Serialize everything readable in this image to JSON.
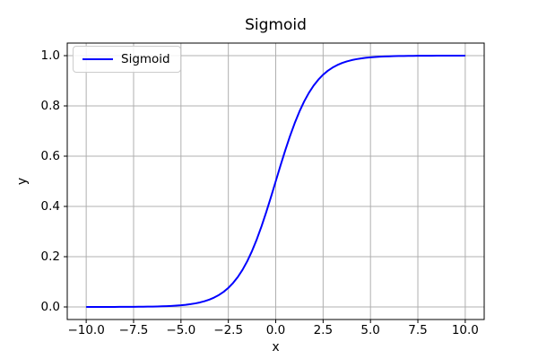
{
  "figure": {
    "background": "#ffffff"
  },
  "chart_data": {
    "type": "line",
    "title": "Sigmoid",
    "xlabel": "x",
    "ylabel": "y",
    "xlim": [
      -11,
      11
    ],
    "ylim": [
      -0.05,
      1.05
    ],
    "grid": true,
    "grid_color": "#b0b0b0",
    "spine_color": "#000000",
    "xticks": {
      "values": [
        -10,
        -7.5,
        -5,
        -2.5,
        0,
        2.5,
        5,
        7.5,
        10
      ],
      "labels": [
        "−10.0",
        "−7.5",
        "−5.0",
        "−2.5",
        "0.0",
        "2.5",
        "5.0",
        "7.5",
        "10.0"
      ]
    },
    "yticks": {
      "values": [
        0,
        0.2,
        0.4,
        0.6,
        0.8,
        1.0
      ],
      "labels": [
        "0.0",
        "0.2",
        "0.4",
        "0.6",
        "0.8",
        "1.0"
      ]
    },
    "legend": {
      "label": "Sigmoid",
      "position": "upper left"
    },
    "series": [
      {
        "name": "Sigmoid",
        "color": "#0000ff",
        "x": [
          -10,
          -9.75,
          -9.5,
          -9.25,
          -9,
          -8.75,
          -8.5,
          -8.25,
          -8,
          -7.75,
          -7.5,
          -7.25,
          -7,
          -6.75,
          -6.5,
          -6.25,
          -6,
          -5.75,
          -5.5,
          -5.25,
          -5,
          -4.75,
          -4.5,
          -4.25,
          -4,
          -3.75,
          -3.5,
          -3.25,
          -3,
          -2.75,
          -2.5,
          -2.25,
          -2,
          -1.75,
          -1.5,
          -1.25,
          -1,
          -0.75,
          -0.5,
          -0.25,
          0,
          0.25,
          0.5,
          0.75,
          1,
          1.25,
          1.5,
          1.75,
          2,
          2.25,
          2.5,
          2.75,
          3,
          3.25,
          3.5,
          3.75,
          4,
          4.25,
          4.5,
          4.75,
          5,
          5.25,
          5.5,
          5.75,
          6,
          6.25,
          6.5,
          6.75,
          7,
          7.25,
          7.5,
          7.75,
          8,
          8.25,
          8.5,
          8.75,
          9,
          9.25,
          9.5,
          9.75,
          10
        ],
        "y": [
          5e-05,
          6e-05,
          7e-05,
          0.0001,
          0.00012,
          0.00016,
          0.0002,
          0.00026,
          0.00034,
          0.00043,
          0.00055,
          0.00071,
          0.00091,
          0.00117,
          0.0015,
          0.00193,
          0.00247,
          0.00317,
          0.00407,
          0.00522,
          0.00669,
          0.00858,
          0.01099,
          0.01406,
          0.01799,
          0.02298,
          0.02931,
          0.03733,
          0.04743,
          0.06009,
          0.07586,
          0.09535,
          0.1192,
          0.14805,
          0.18243,
          0.2227,
          0.26894,
          0.32082,
          0.37754,
          0.43782,
          0.5,
          0.56218,
          0.62246,
          0.67918,
          0.73106,
          0.7773,
          0.81757,
          0.85195,
          0.8808,
          0.90465,
          0.92414,
          0.93991,
          0.95257,
          0.96267,
          0.97069,
          0.97702,
          0.98201,
          0.98594,
          0.98901,
          0.99142,
          0.99331,
          0.99478,
          0.99593,
          0.99683,
          0.99753,
          0.99807,
          0.9985,
          0.99883,
          0.99909,
          0.99929,
          0.99945,
          0.99957,
          0.99966,
          0.99974,
          0.9998,
          0.99984,
          0.99988,
          0.9999,
          0.99993,
          0.99994,
          0.99995
        ]
      }
    ]
  }
}
